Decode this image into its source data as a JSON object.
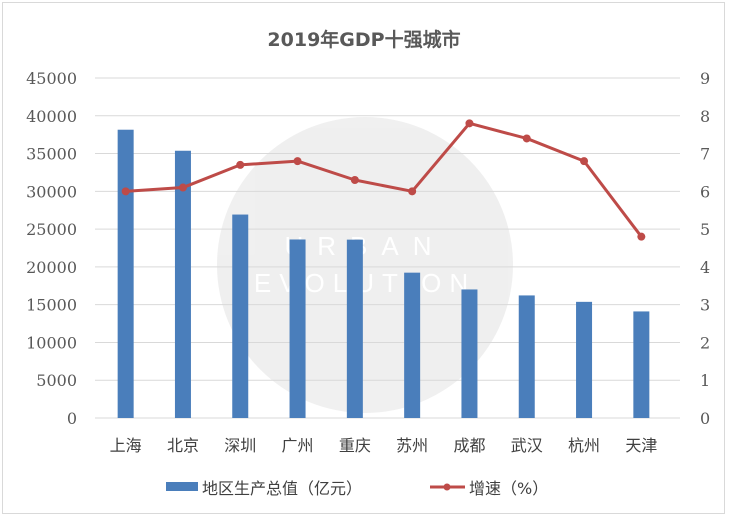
{
  "chart_data": {
    "type": "bar+line",
    "title": "2019年GDP十强城市",
    "categories": [
      "上海",
      "北京",
      "深圳",
      "广州",
      "重庆",
      "苏州",
      "成都",
      "武汉",
      "杭州",
      "天津"
    ],
    "series": [
      {
        "name": "地区生产总值（亿元）",
        "type": "bar",
        "axis": "left",
        "color": "#4a7ebb",
        "values": [
          38155,
          35371,
          26927,
          23628,
          23606,
          19236,
          17013,
          16223,
          15373,
          14104
        ]
      },
      {
        "name": "增速（%）",
        "type": "line",
        "axis": "right",
        "color": "#be4b48",
        "values": [
          6.0,
          6.1,
          6.7,
          6.8,
          6.3,
          6.0,
          7.8,
          7.4,
          6.8,
          4.8
        ]
      }
    ],
    "y_left": {
      "range": [
        0,
        45000
      ],
      "ticks": [
        "0",
        "5000",
        "10000",
        "15000",
        "20000",
        "25000",
        "30000",
        "35000",
        "40000",
        "45000"
      ]
    },
    "y_right": {
      "range": [
        0,
        9
      ],
      "ticks": [
        "0",
        "1",
        "2",
        "3",
        "4",
        "5",
        "6",
        "7",
        "8",
        "9"
      ]
    },
    "grid": true,
    "legend": "bottom",
    "watermark": "URBAN EVOLUTION"
  }
}
